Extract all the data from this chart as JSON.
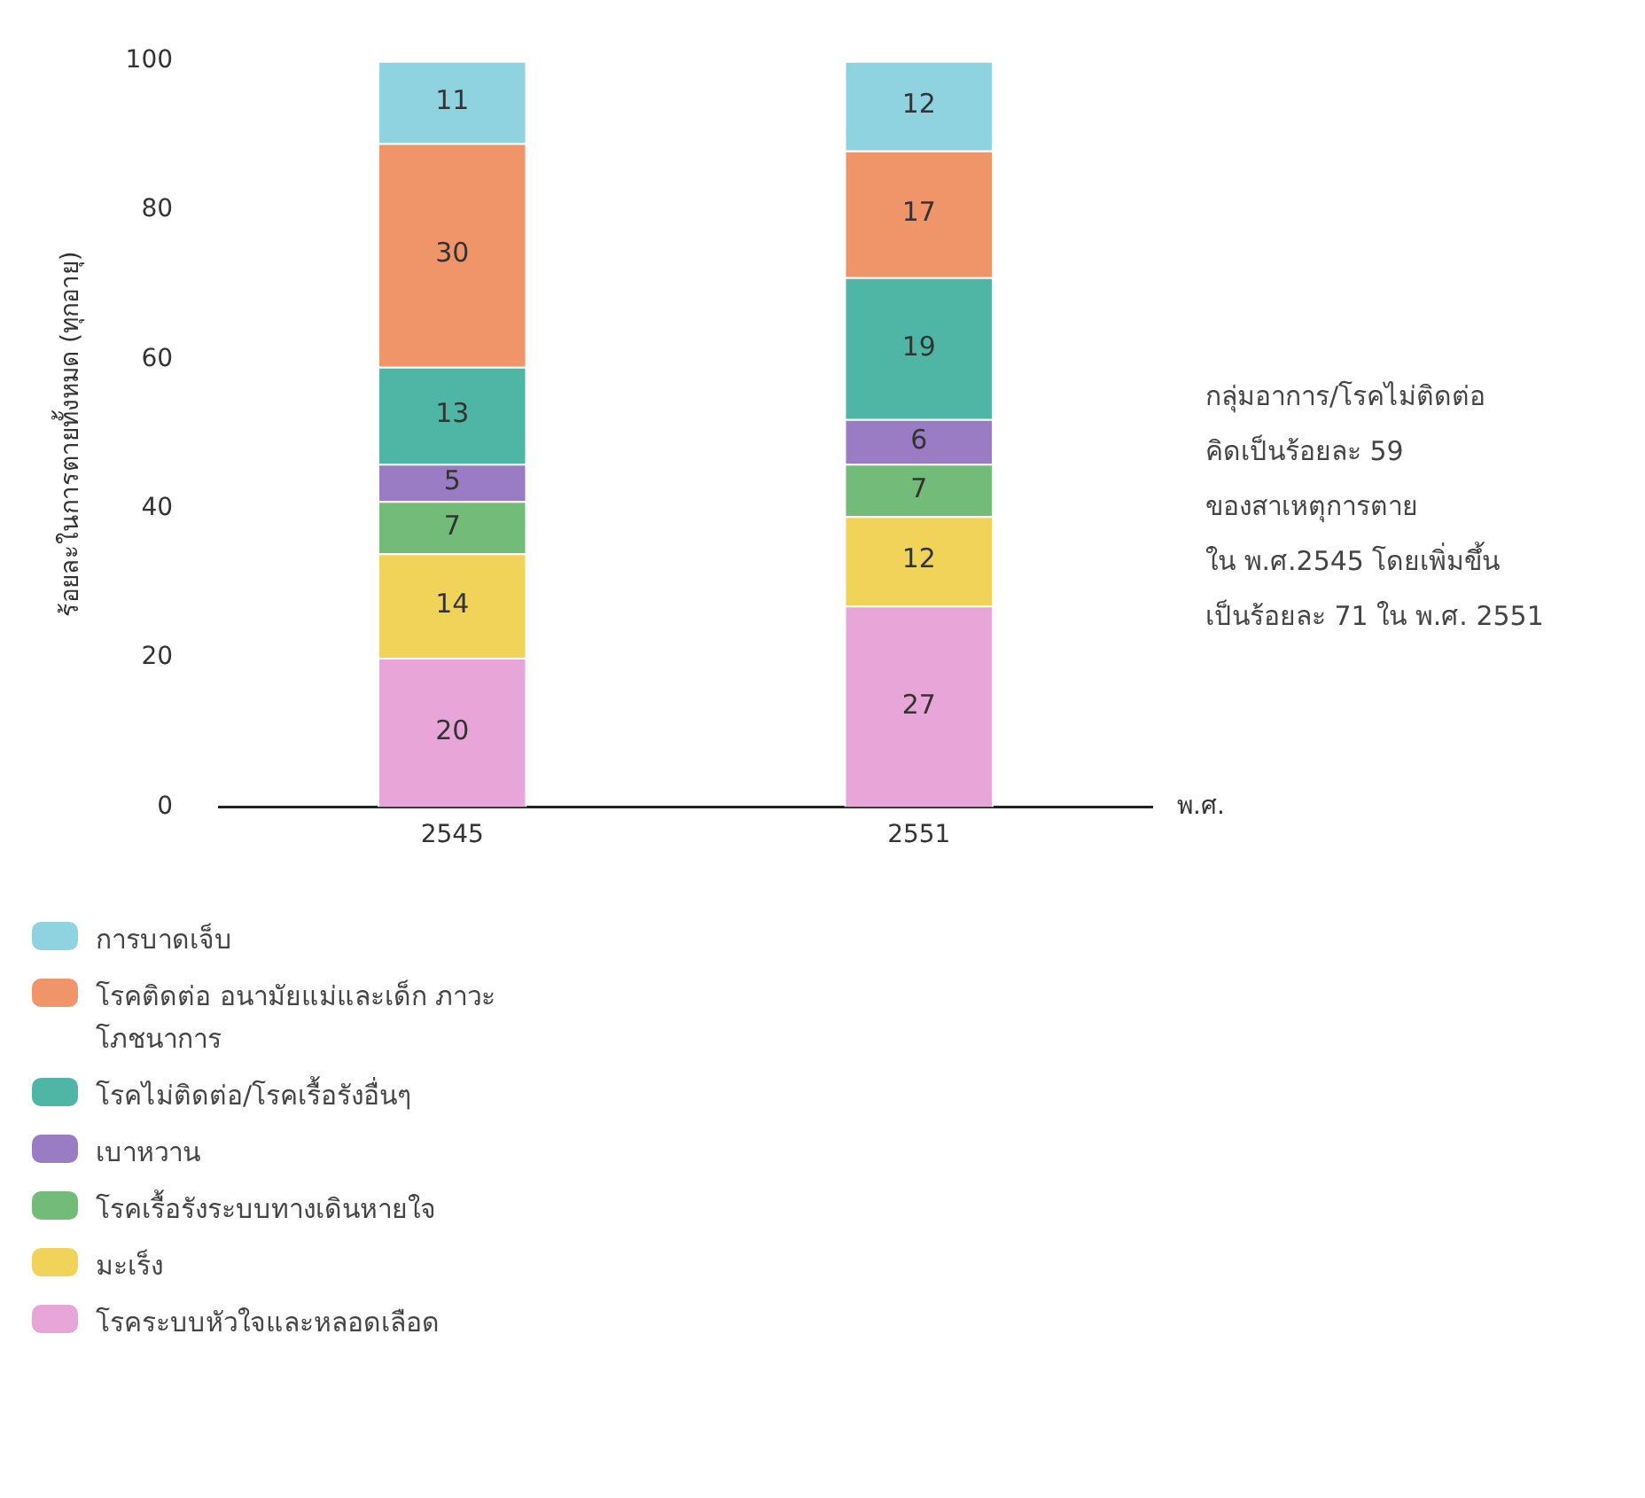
{
  "chart_data": {
    "type": "bar",
    "stacked": true,
    "categories": [
      "2545",
      "2551"
    ],
    "ylabel": "ร้อยละในการตายทั้งหมด (ทุกอายุ)",
    "xlabel": "พ.ศ.",
    "ylim": [
      0,
      100
    ],
    "yticks": [
      0,
      20,
      40,
      60,
      80,
      100
    ],
    "grid": false,
    "legend": "bottom left",
    "data_labels": true,
    "annotations": [
      "กลุ่มอาการ/โรคไม่ติดต่อ\nคิดเป็นร้อยละ 59\nของสาเหตุการตาย\nใน พ.ศ.2545 โดยเพิ่มขึ้น\nเป็นร้อยละ 71 ใน พ.ศ. 2551"
    ],
    "series": [
      {
        "name": "โรคระบบหัวใจและหลอดเลือด",
        "color": "#e8a6d8",
        "values": [
          20,
          27
        ]
      },
      {
        "name": "มะเร็ง",
        "color": "#f2d35a",
        "values": [
          14,
          12
        ]
      },
      {
        "name": "โรคเรื้อรังระบบทางเดินหายใจ",
        "color": "#72bb78",
        "values": [
          7,
          7
        ]
      },
      {
        "name": "เบาหวาน",
        "color": "#9a7cc4",
        "values": [
          5,
          6
        ]
      },
      {
        "name": "โรคไม่ติดต่อ/โรคเรื้อรังอื่นๆ",
        "color": "#4fb5a5",
        "values": [
          13,
          19
        ]
      },
      {
        "name": "โรคติดต่อ อนามัยแม่และเด็ก ภาวะโภชนาการ",
        "color": "#f0956a",
        "values": [
          30,
          17
        ]
      },
      {
        "name": "การบาดเจ็บ",
        "color": "#8fd3e0",
        "values": [
          11,
          12
        ]
      }
    ]
  }
}
